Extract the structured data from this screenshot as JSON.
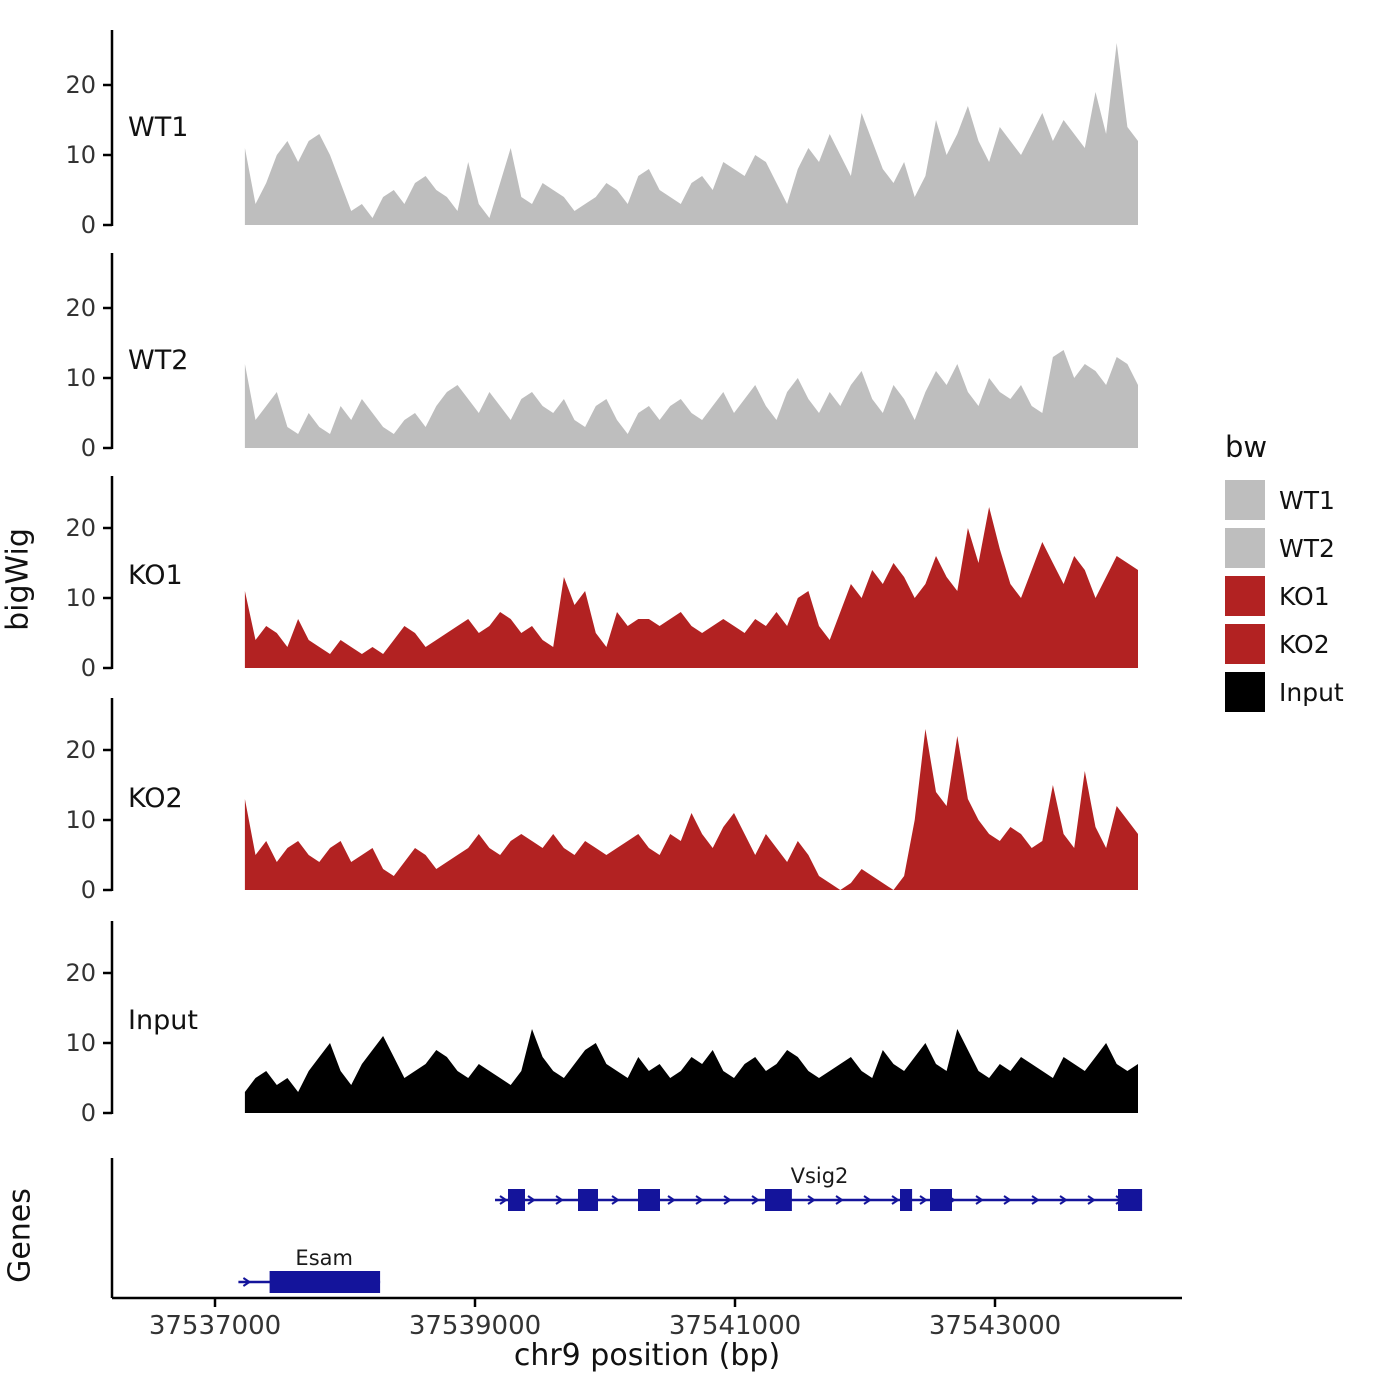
{
  "chart_data": {
    "type": "area",
    "xlabel": "chr9 position (bp)",
    "ylabel": "bigWig",
    "genes_panel_label": "Genes",
    "x_domain": [
      37537230,
      37544100
    ],
    "x_ticks": [
      37537000,
      37539000,
      37541000,
      37543000
    ],
    "x_tick_labels": [
      "37537000",
      "37539000",
      "37541000",
      "37543000"
    ],
    "y_ticks": [
      0,
      10,
      20
    ],
    "y_tick_labels": [
      "0",
      "10",
      "20"
    ],
    "ylim": [
      0,
      27
    ],
    "gene_color": "#14149B",
    "axis_color": "#000000",
    "tick_text_color": "#333333",
    "tracks": [
      {
        "name": "WT1",
        "color": "#BEBEBE",
        "values": [
          11,
          3,
          6,
          10,
          12,
          9,
          12,
          13,
          10,
          6,
          2,
          3,
          1,
          4,
          5,
          3,
          6,
          7,
          5,
          4,
          2,
          9,
          3,
          1,
          6,
          11,
          4,
          3,
          6,
          5,
          4,
          2,
          3,
          4,
          6,
          5,
          3,
          7,
          8,
          5,
          4,
          3,
          6,
          7,
          5,
          9,
          8,
          7,
          10,
          9,
          6,
          3,
          8,
          11,
          9,
          13,
          10,
          7,
          16,
          12,
          8,
          6,
          9,
          4,
          7,
          15,
          10,
          13,
          17,
          12,
          9,
          14,
          12,
          10,
          13,
          16,
          12,
          15,
          13,
          11,
          19,
          13,
          26,
          14,
          12
        ]
      },
      {
        "name": "WT2",
        "color": "#BEBEBE",
        "values": [
          12,
          4,
          6,
          8,
          3,
          2,
          5,
          3,
          2,
          6,
          4,
          7,
          5,
          3,
          2,
          4,
          5,
          3,
          6,
          8,
          9,
          7,
          5,
          8,
          6,
          4,
          7,
          8,
          6,
          5,
          7,
          4,
          3,
          6,
          7,
          4,
          2,
          5,
          6,
          4,
          6,
          7,
          5,
          4,
          6,
          8,
          5,
          7,
          9,
          6,
          4,
          8,
          10,
          7,
          5,
          8,
          6,
          9,
          11,
          7,
          5,
          9,
          7,
          4,
          8,
          11,
          9,
          12,
          8,
          6,
          10,
          8,
          7,
          9,
          6,
          5,
          13,
          14,
          10,
          12,
          11,
          9,
          13,
          12,
          9
        ]
      },
      {
        "name": "KO1",
        "color": "#B22222",
        "values": [
          11,
          4,
          6,
          5,
          3,
          7,
          4,
          3,
          2,
          4,
          3,
          2,
          3,
          2,
          4,
          6,
          5,
          3,
          4,
          5,
          6,
          7,
          5,
          6,
          8,
          7,
          5,
          6,
          4,
          3,
          13,
          9,
          11,
          5,
          3,
          8,
          6,
          7,
          7,
          6,
          7,
          8,
          6,
          5,
          6,
          7,
          6,
          5,
          7,
          6,
          8,
          6,
          10,
          11,
          6,
          4,
          8,
          12,
          10,
          14,
          12,
          15,
          13,
          10,
          12,
          16,
          13,
          11,
          20,
          15,
          23,
          17,
          12,
          10,
          14,
          18,
          15,
          12,
          16,
          14,
          10,
          13,
          16,
          15,
          14
        ]
      },
      {
        "name": "KO2",
        "color": "#B22222",
        "values": [
          13,
          5,
          7,
          4,
          6,
          7,
          5,
          4,
          6,
          7,
          4,
          5,
          6,
          3,
          2,
          4,
          6,
          5,
          3,
          4,
          5,
          6,
          8,
          6,
          5,
          7,
          8,
          7,
          6,
          8,
          6,
          5,
          7,
          6,
          5,
          6,
          7,
          8,
          6,
          5,
          8,
          7,
          11,
          8,
          6,
          9,
          11,
          8,
          5,
          8,
          6,
          4,
          7,
          5,
          2,
          1,
          0,
          1,
          3,
          2,
          1,
          0,
          2,
          10,
          23,
          14,
          12,
          22,
          13,
          10,
          8,
          7,
          9,
          8,
          6,
          7,
          15,
          8,
          6,
          17,
          9,
          6,
          12,
          10,
          8
        ]
      },
      {
        "name": "Input",
        "color": "#000000",
        "values": [
          3,
          5,
          6,
          4,
          5,
          3,
          6,
          8,
          10,
          6,
          4,
          7,
          9,
          11,
          8,
          5,
          6,
          7,
          9,
          8,
          6,
          5,
          7,
          6,
          5,
          4,
          6,
          12,
          8,
          6,
          5,
          7,
          9,
          10,
          7,
          6,
          5,
          8,
          6,
          7,
          5,
          6,
          8,
          7,
          9,
          6,
          5,
          7,
          8,
          6,
          7,
          9,
          8,
          6,
          5,
          6,
          7,
          8,
          6,
          5,
          9,
          7,
          6,
          8,
          10,
          7,
          6,
          12,
          9,
          6,
          5,
          7,
          6,
          8,
          7,
          6,
          5,
          8,
          7,
          6,
          8,
          10,
          7,
          6,
          7
        ]
      }
    ],
    "genes": [
      {
        "name": "Vsig2",
        "start": 37539154,
        "end": 37544131,
        "strand": "+",
        "row": 0,
        "label_at": 37541650,
        "exons": [
          [
            37539254,
            37539385
          ],
          [
            37539792,
            37539946
          ],
          [
            37540254,
            37540423
          ],
          [
            37541231,
            37541438
          ],
          [
            37542269,
            37542362
          ],
          [
            37542500,
            37542669
          ],
          [
            37543946,
            37544131
          ]
        ]
      },
      {
        "name": "Esam",
        "start": 37537180,
        "end": 37538270,
        "strand": "+",
        "row": 1,
        "label_at": 37537840,
        "exons": [
          [
            37537420,
            37538270
          ]
        ]
      }
    ],
    "legend": {
      "title": "bw",
      "items": [
        {
          "label": "WT1",
          "color": "#BEBEBE"
        },
        {
          "label": "WT2",
          "color": "#BEBEBE"
        },
        {
          "label": "KO1",
          "color": "#B22222"
        },
        {
          "label": "KO2",
          "color": "#B22222"
        },
        {
          "label": "Input",
          "color": "#000000"
        }
      ]
    }
  }
}
